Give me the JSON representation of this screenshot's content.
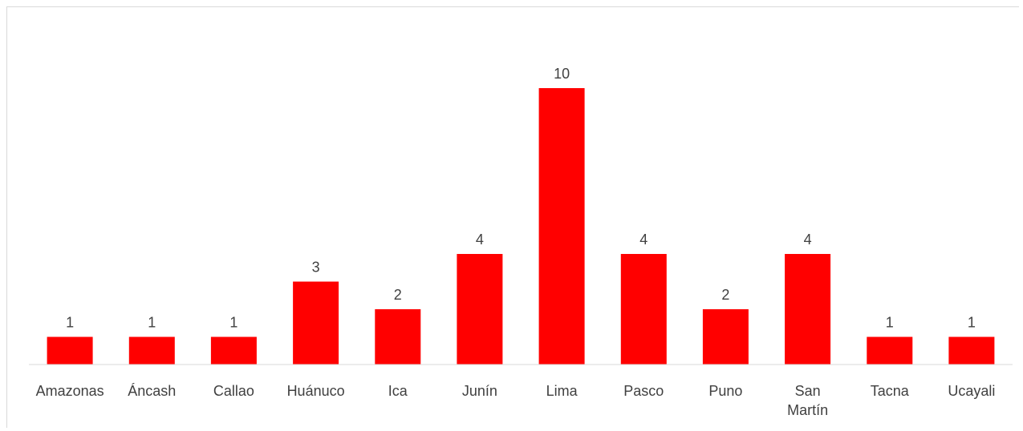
{
  "chart_data": {
    "type": "bar",
    "title": "",
    "xlabel": "",
    "ylabel": "",
    "categories": [
      "Amazonas",
      "Áncash",
      "Callao",
      "Huánuco",
      "Ica",
      "Junín",
      "Lima",
      "Pasco",
      "Puno",
      "San Martín",
      "Tacna",
      "Ucayali"
    ],
    "values": [
      1,
      1,
      1,
      3,
      2,
      4,
      10,
      4,
      2,
      4,
      1,
      1
    ],
    "ylim": [
      0,
      10
    ],
    "grid": false,
    "legend": false,
    "bar_color": "#ff0000",
    "data_labels": true
  }
}
